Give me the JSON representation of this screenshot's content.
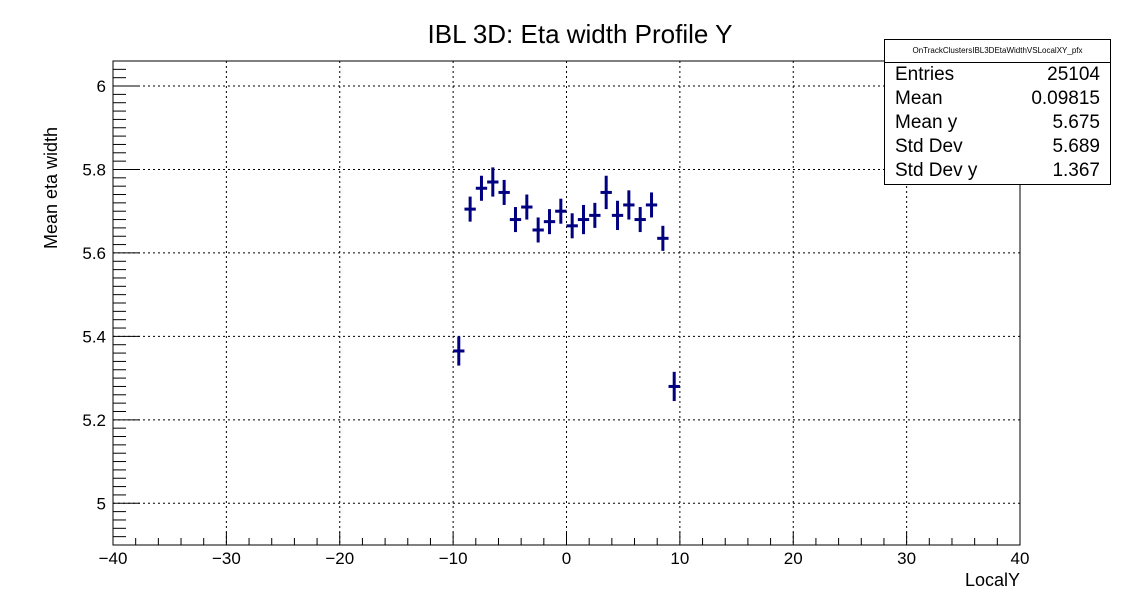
{
  "chart_data": {
    "type": "scatter",
    "title": "IBL 3D: Eta width Profile Y",
    "xlabel": "LocalY",
    "ylabel": "Mean eta width",
    "xlim": [
      -40,
      40
    ],
    "ylim": [
      4.9,
      6.06
    ],
    "x_ticks": [
      -40,
      -30,
      -20,
      -10,
      0,
      10,
      20,
      30,
      40
    ],
    "x_tick_labels": [
      "−40",
      "−30",
      "−20",
      "−10",
      "0",
      "10",
      "20",
      "30",
      "40"
    ],
    "y_ticks": [
      5,
      5.2,
      5.4,
      5.6,
      5.8,
      6
    ],
    "y_tick_labels": [
      "5",
      "5.2",
      "5.4",
      "5.6",
      "5.8",
      "6"
    ],
    "grid": true,
    "color": "#000080",
    "series": [
      {
        "points": [
          {
            "x": -9.5,
            "y": 5.365,
            "err": 0.035
          },
          {
            "x": -8.5,
            "y": 5.705,
            "err": 0.03
          },
          {
            "x": -7.5,
            "y": 5.755,
            "err": 0.03
          },
          {
            "x": -6.5,
            "y": 5.77,
            "err": 0.035
          },
          {
            "x": -5.5,
            "y": 5.745,
            "err": 0.03
          },
          {
            "x": -4.5,
            "y": 5.68,
            "err": 0.03
          },
          {
            "x": -3.5,
            "y": 5.71,
            "err": 0.03
          },
          {
            "x": -2.5,
            "y": 5.655,
            "err": 0.03
          },
          {
            "x": -1.5,
            "y": 5.675,
            "err": 0.03
          },
          {
            "x": -0.5,
            "y": 5.7,
            "err": 0.03
          },
          {
            "x": 0.5,
            "y": 5.665,
            "err": 0.03
          },
          {
            "x": 1.5,
            "y": 5.68,
            "err": 0.035
          },
          {
            "x": 2.5,
            "y": 5.69,
            "err": 0.03
          },
          {
            "x": 3.5,
            "y": 5.745,
            "err": 0.04
          },
          {
            "x": 4.5,
            "y": 5.69,
            "err": 0.035
          },
          {
            "x": 5.5,
            "y": 5.715,
            "err": 0.035
          },
          {
            "x": 6.5,
            "y": 5.68,
            "err": 0.03
          },
          {
            "x": 7.5,
            "y": 5.715,
            "err": 0.03
          },
          {
            "x": 8.5,
            "y": 5.635,
            "err": 0.03
          },
          {
            "x": 9.5,
            "y": 5.28,
            "err": 0.035
          }
        ]
      }
    ],
    "stats": {
      "name": "OnTrackClustersIBL3DEtaWidthVSLocalXY_pfx",
      "rows": [
        {
          "label": "Entries",
          "value": "25104"
        },
        {
          "label": "Mean",
          "value": "0.09815"
        },
        {
          "label": "Mean y",
          "value": "5.675"
        },
        {
          "label": "Std Dev",
          "value": "5.689"
        },
        {
          "label": "Std Dev y",
          "value": "1.367"
        }
      ]
    }
  }
}
